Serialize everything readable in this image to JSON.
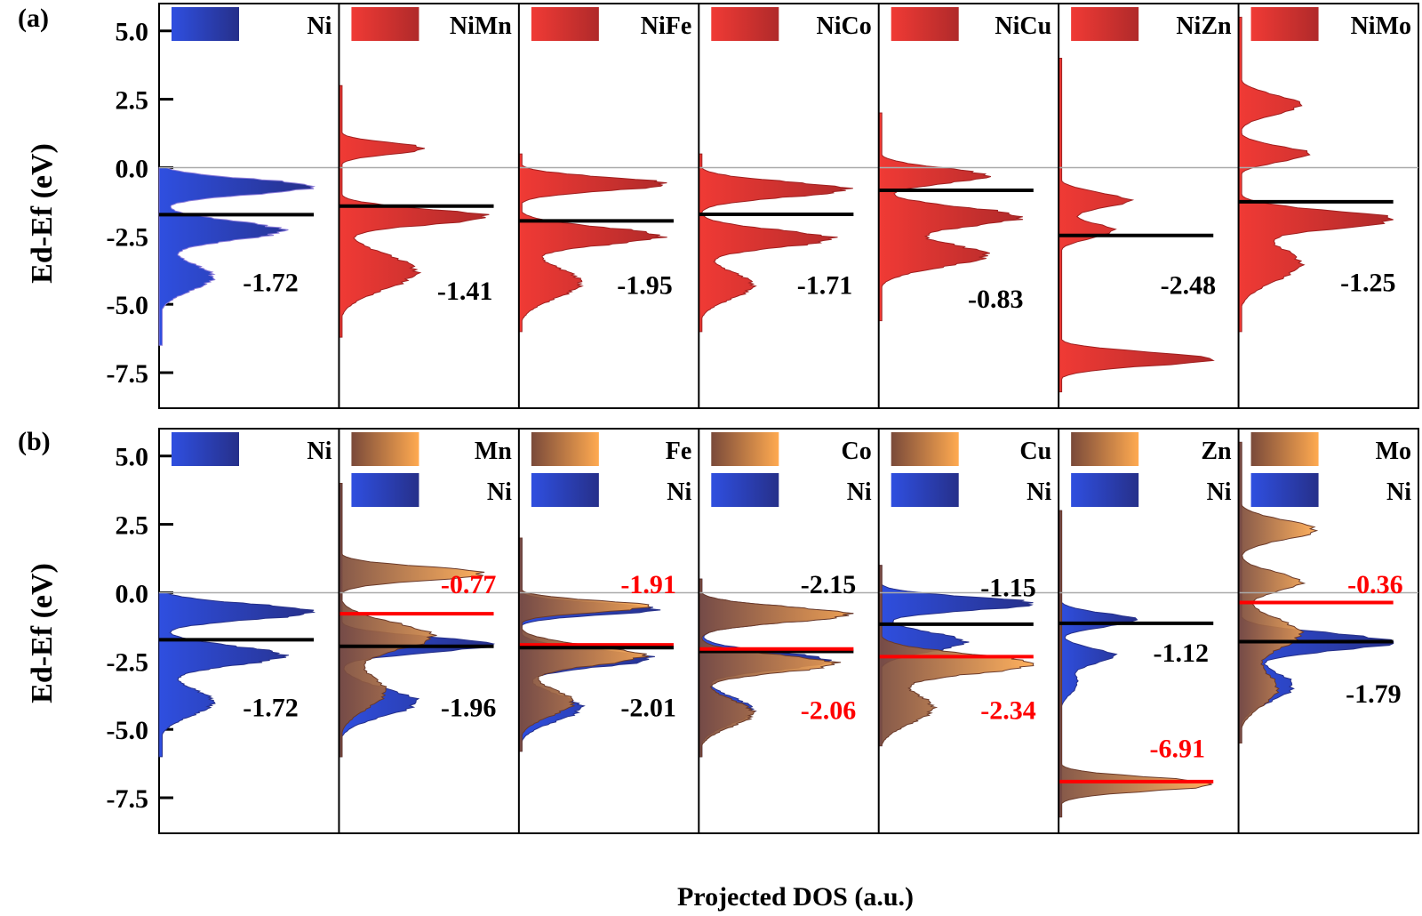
{
  "chart_data": {
    "type": "area",
    "y_axis_label": "Ed-Ef (eV)",
    "x_axis_label": "Projected DOS (a.u.)",
    "ylim": [
      -8.8,
      6.0
    ],
    "y_ticks": [
      "5.0",
      "2.5",
      "0.0",
      "-2.5",
      "-5.0",
      "-7.5"
    ],
    "y_tick_values": [
      5.0,
      2.5,
      0.0,
      -2.5,
      -5.0,
      -7.5
    ],
    "fermi_level": 0.0,
    "colors": {
      "ni_fill_light": "#2f4fe0",
      "ni_fill_dark": "#26308a",
      "alloy_fill_light": "#f03a35",
      "alloy_fill_dark": "#b02a2a",
      "metal_fill_light": "#ffaa50",
      "metal_fill_dark": "#7a4a3a",
      "black_center": "#000000",
      "red_center": "#ff0000",
      "fermi_line": "#aaaaaa"
    },
    "panels": [
      {
        "label": "(a)",
        "subplots": [
          {
            "legend": [
              {
                "name": "Ni",
                "color": "blue"
              }
            ],
            "dbands": [
              {
                "value": -1.72,
                "label": "-1.72",
                "color": "black"
              }
            ],
            "peaks": [
              [
                -0.7,
                1.0,
                0.4
              ],
              [
                -2.3,
                0.8,
                0.5
              ],
              [
                -4.0,
                0.35,
                0.7
              ]
            ],
            "extent": [
              -6.5,
              0.0
            ]
          },
          {
            "legend": [
              {
                "name": "NiMn",
                "color": "red"
              }
            ],
            "dbands": [
              {
                "value": -1.41,
                "label": "-1.41",
                "color": "black"
              }
            ],
            "peaks": [
              [
                0.7,
                0.55,
                0.3
              ],
              [
                -1.8,
                0.95,
                0.4
              ],
              [
                -3.8,
                0.5,
                0.9
              ]
            ],
            "extent": [
              -6.2,
              3.0
            ]
          },
          {
            "legend": [
              {
                "name": "NiFe",
                "color": "red"
              }
            ],
            "dbands": [
              {
                "value": -1.95,
                "label": "-1.95",
                "color": "black"
              }
            ],
            "peaks": [
              [
                -0.6,
                0.95,
                0.35
              ],
              [
                -2.5,
                0.9,
                0.45
              ],
              [
                -4.2,
                0.4,
                0.8
              ]
            ],
            "extent": [
              -6.0,
              0.5
            ]
          },
          {
            "legend": [
              {
                "name": "NiCo",
                "color": "red"
              }
            ],
            "dbands": [
              {
                "value": -1.71,
                "label": "-1.71",
                "color": "black"
              }
            ],
            "peaks": [
              [
                -0.8,
                0.95,
                0.4
              ],
              [
                -2.6,
                0.85,
                0.45
              ],
              [
                -4.3,
                0.35,
                0.7
              ]
            ],
            "extent": [
              -6.0,
              0.5
            ]
          },
          {
            "legend": [
              {
                "name": "NiCu",
                "color": "red"
              }
            ],
            "dbands": [
              {
                "value": -0.83,
                "label": "-0.83",
                "color": "black"
              }
            ],
            "peaks": [
              [
                -0.3,
                0.7,
                0.4
              ],
              [
                -1.8,
                0.9,
                0.5
              ],
              [
                -3.2,
                0.7,
                0.6
              ]
            ],
            "extent": [
              -5.6,
              2.0
            ]
          },
          {
            "legend": [
              {
                "name": "NiZn",
                "color": "red"
              }
            ],
            "dbands": [
              {
                "value": -2.48,
                "label": "-2.48",
                "color": "black"
              }
            ],
            "peaks": [
              [
                -1.2,
                0.45,
                0.4
              ],
              [
                -2.3,
                0.35,
                0.4
              ],
              [
                -7.0,
                1.0,
                0.35
              ]
            ],
            "extent": [
              -8.2,
              4.0
            ]
          },
          {
            "legend": [
              {
                "name": "NiMo",
                "color": "red"
              }
            ],
            "dbands": [
              {
                "value": -1.25,
                "label": "-1.25",
                "color": "black"
              }
            ],
            "peaks": [
              [
                2.3,
                0.4,
                0.5
              ],
              [
                0.5,
                0.45,
                0.4
              ],
              [
                -1.9,
                1.0,
                0.45
              ],
              [
                -3.5,
                0.4,
                0.9
              ]
            ],
            "extent": [
              -6.0,
              5.5
            ]
          }
        ]
      },
      {
        "label": "(b)",
        "subplots": [
          {
            "legend": [
              {
                "name": "Ni",
                "color": "blue"
              }
            ],
            "dbands": [
              {
                "value": -1.72,
                "label": "-1.72",
                "color": "black"
              }
            ],
            "ni_peaks": [
              [
                -0.7,
                1.0,
                0.4
              ],
              [
                -2.3,
                0.8,
                0.5
              ],
              [
                -4.0,
                0.35,
                0.7
              ]
            ],
            "metal_peaks": [],
            "extent": [
              -6.0,
              0.0
            ]
          },
          {
            "legend": [
              {
                "name": "Mn",
                "color": "orange"
              },
              {
                "name": "Ni",
                "color": "blue"
              }
            ],
            "dbands": [
              {
                "value": -0.77,
                "label": "-0.77",
                "color": "red"
              },
              {
                "value": -1.96,
                "label": "-1.96",
                "color": "black"
              }
            ],
            "ni_peaks": [
              [
                -1.9,
                1.0,
                0.4
              ],
              [
                -4.0,
                0.5,
                0.7
              ]
            ],
            "metal_peaks": [
              [
                0.7,
                0.95,
                0.35
              ],
              [
                -1.6,
                0.6,
                0.7
              ],
              [
                -3.6,
                0.3,
                0.9
              ]
            ],
            "extent": [
              -6.0,
              4.0
            ]
          },
          {
            "legend": [
              {
                "name": "Fe",
                "color": "orange"
              },
              {
                "name": "Ni",
                "color": "blue"
              }
            ],
            "dbands": [
              {
                "value": -1.91,
                "label": "-1.91",
                "color": "red"
              },
              {
                "value": -2.01,
                "label": "-2.01",
                "color": "black"
              }
            ],
            "ni_peaks": [
              [
                -0.6,
                0.9,
                0.3
              ],
              [
                -2.4,
                0.85,
                0.45
              ],
              [
                -4.2,
                0.4,
                0.7
              ]
            ],
            "metal_peaks": [
              [
                -0.5,
                0.85,
                0.3
              ],
              [
                -2.3,
                0.8,
                0.5
              ],
              [
                -4.0,
                0.35,
                0.7
              ]
            ],
            "extent": [
              -5.8,
              2.0
            ]
          },
          {
            "legend": [
              {
                "name": "Co",
                "color": "orange"
              },
              {
                "name": "Ni",
                "color": "blue"
              }
            ],
            "dbands": [
              {
                "value": -2.15,
                "label": "-2.15",
                "color": "black"
              },
              {
                "value": -2.06,
                "label": "-2.06",
                "color": "red"
              }
            ],
            "ni_peaks": [
              [
                -0.8,
                0.95,
                0.4
              ],
              [
                -2.5,
                0.85,
                0.45
              ],
              [
                -4.3,
                0.35,
                0.7
              ]
            ],
            "metal_peaks": [
              [
                -0.8,
                0.97,
                0.4
              ],
              [
                -2.6,
                0.87,
                0.45
              ],
              [
                -4.4,
                0.35,
                0.7
              ]
            ],
            "extent": [
              -6.0,
              0.5
            ]
          },
          {
            "legend": [
              {
                "name": "Cu",
                "color": "orange"
              },
              {
                "name": "Ni",
                "color": "blue"
              }
            ],
            "dbands": [
              {
                "value": -1.15,
                "label": "-1.15",
                "color": "black"
              },
              {
                "value": -2.34,
                "label": "-2.34",
                "color": "red"
              }
            ],
            "ni_peaks": [
              [
                -0.4,
                1.0,
                0.35
              ],
              [
                -1.8,
                0.55,
                0.5
              ]
            ],
            "metal_peaks": [
              [
                -2.6,
                1.0,
                0.5
              ],
              [
                -4.2,
                0.35,
                0.8
              ]
            ],
            "extent": [
              -5.6,
              1.0
            ]
          },
          {
            "legend": [
              {
                "name": "Zn",
                "color": "orange"
              },
              {
                "name": "Ni",
                "color": "blue"
              }
            ],
            "dbands": [
              {
                "value": -1.12,
                "label": "-1.12",
                "color": "black"
              },
              {
                "value": -6.91,
                "label": "-6.91",
                "color": "red"
              }
            ],
            "ni_peaks": [
              [
                -1.0,
                0.5,
                0.35
              ],
              [
                -2.3,
                0.35,
                0.4
              ],
              [
                -3.3,
                0.12,
                0.6
              ]
            ],
            "metal_peaks": [
              [
                -7.0,
                1.0,
                0.35
              ]
            ],
            "extent": [
              -8.2,
              3.0
            ]
          },
          {
            "legend": [
              {
                "name": "Mo",
                "color": "orange"
              },
              {
                "name": "Ni",
                "color": "blue"
              }
            ],
            "dbands": [
              {
                "value": -0.36,
                "label": "-0.36",
                "color": "red"
              },
              {
                "value": -1.79,
                "label": "-1.79",
                "color": "black"
              }
            ],
            "ni_peaks": [
              [
                -1.8,
                1.0,
                0.45
              ],
              [
                -3.4,
                0.35,
                0.8
              ]
            ],
            "metal_peaks": [
              [
                2.3,
                0.5,
                0.5
              ],
              [
                0.4,
                0.4,
                0.5
              ],
              [
                -1.5,
                0.4,
                0.8
              ],
              [
                -3.5,
                0.25,
                0.9
              ]
            ],
            "extent": [
              -5.5,
              5.5
            ]
          }
        ]
      }
    ]
  }
}
